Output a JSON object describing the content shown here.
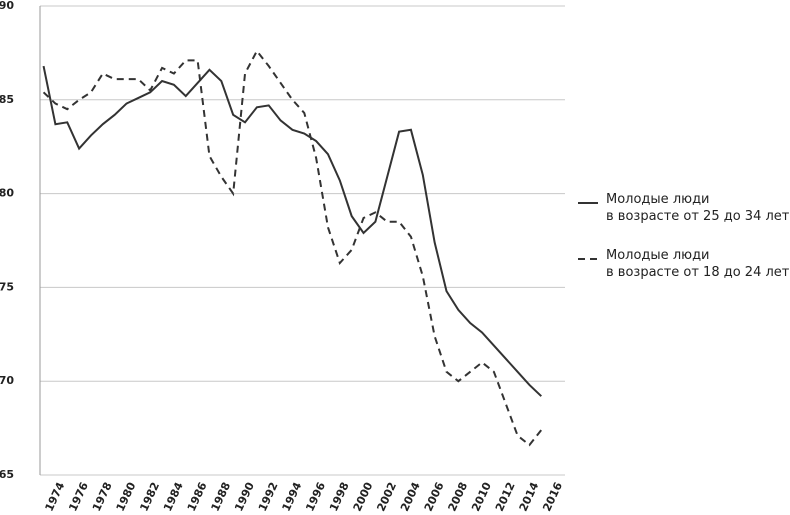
{
  "chart_data": {
    "type": "line",
    "x": [
      1973,
      1974,
      1975,
      1976,
      1977,
      1978,
      1979,
      1980,
      1981,
      1982,
      1983,
      1984,
      1985,
      1986,
      1987,
      1988,
      1989,
      1990,
      1991,
      1992,
      1993,
      1994,
      1995,
      1996,
      1997,
      1998,
      1999,
      2000,
      2001,
      2002,
      2003,
      2004,
      2005,
      2006,
      2007,
      2008,
      2009,
      2010,
      2011,
      2012,
      2013,
      2014,
      2015
    ],
    "series": [
      {
        "name": "Молодые люди\nв возрасте от 25 до 34 лет",
        "color": "#333333",
        "line_style": "solid",
        "values": [
          86.8,
          83.7,
          83.8,
          82.4,
          83.1,
          83.7,
          84.2,
          84.8,
          85.1,
          85.4,
          86.0,
          85.8,
          85.2,
          85.9,
          86.6,
          86.0,
          84.2,
          83.8,
          84.6,
          84.7,
          83.9,
          83.4,
          83.2,
          82.8,
          82.1,
          80.7,
          78.8,
          77.9,
          78.5,
          80.9,
          83.3,
          83.4,
          81.0,
          77.4,
          74.8,
          73.8,
          73.1,
          72.6,
          71.9,
          71.2,
          70.5,
          69.8,
          69.2
        ]
      },
      {
        "name": "Молодые люди\nв возрасте от 18 до 24 лет",
        "color": "#333333",
        "line_style": "dashed",
        "values": [
          85.4,
          84.8,
          84.5,
          85.0,
          85.4,
          86.4,
          86.1,
          86.1,
          86.1,
          85.5,
          86.7,
          86.4,
          87.1,
          87.1,
          82.0,
          80.9,
          80.0,
          86.4,
          87.6,
          86.8,
          85.9,
          85.0,
          84.3,
          81.9,
          78.2,
          76.3,
          77.0,
          78.7,
          79.0,
          78.5,
          78.5,
          77.7,
          75.6,
          72.4,
          70.5,
          70.0,
          70.5,
          71.0,
          70.5,
          68.8,
          67.1,
          66.6,
          67.4
        ]
      }
    ],
    "xlim": [
      1972.7,
      2017
    ],
    "xticks": [
      1974,
      1976,
      1978,
      1980,
      1982,
      1984,
      1986,
      1988,
      1990,
      1992,
      1994,
      1996,
      1998,
      2000,
      2002,
      2004,
      2006,
      2008,
      2010,
      2012,
      2014,
      2016
    ],
    "ylim": [
      65,
      90
    ],
    "yticks": [
      65,
      70,
      75,
      80,
      85,
      90
    ],
    "grid": true
  }
}
